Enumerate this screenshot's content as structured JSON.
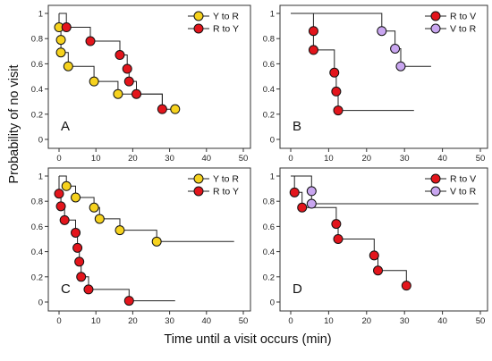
{
  "figure": {
    "ylabel": "Probability of no visit",
    "xlabel": "Time until a visit occurs (min)"
  },
  "colors": {
    "yellow": "#f6d21e",
    "red": "#e3151c",
    "purple": "#c9a6f0",
    "line": "#222222"
  },
  "chart_data": [
    {
      "type": "line",
      "panel": "A",
      "xlim": [
        0,
        50
      ],
      "ylim": [
        0,
        1
      ],
      "xticks": [
        "0",
        "10",
        "20",
        "30",
        "40",
        "50"
      ],
      "yticks": [
        "0",
        "0.2",
        "0.4",
        "0.6",
        "0.8",
        "1"
      ],
      "grid": false,
      "legend_position": "top-right",
      "series": [
        {
          "name": "Y to R",
          "color": "#f6d21e",
          "steps": [
            [
              0,
              1
            ],
            [
              0,
              0.9
            ],
            [
              0.5,
              0.79
            ],
            [
              0.5,
              0.69
            ],
            [
              2.5,
              0.58
            ],
            [
              9.5,
              0.46
            ],
            [
              16,
              0.36
            ],
            [
              28,
              0.24
            ],
            [
              31.5,
              0.24
            ]
          ],
          "points": [
            [
              0,
              0.89
            ],
            [
              0.5,
              0.79
            ],
            [
              0.5,
              0.69
            ],
            [
              2.5,
              0.58
            ],
            [
              9.5,
              0.46
            ],
            [
              16,
              0.36
            ],
            [
              31.5,
              0.24
            ]
          ]
        },
        {
          "name": "R to Y",
          "color": "#e3151c",
          "steps": [
            [
              0,
              1
            ],
            [
              2,
              0.89
            ],
            [
              8.5,
              0.78
            ],
            [
              16.5,
              0.67
            ],
            [
              18.5,
              0.56
            ],
            [
              19,
              0.46
            ],
            [
              21,
              0.36
            ],
            [
              28,
              0.24
            ],
            [
              28,
              0.24
            ]
          ],
          "points": [
            [
              2,
              0.89
            ],
            [
              8.5,
              0.78
            ],
            [
              16.5,
              0.67
            ],
            [
              18.5,
              0.56
            ],
            [
              19,
              0.46
            ],
            [
              21,
              0.36
            ],
            [
              28,
              0.24
            ]
          ]
        }
      ]
    },
    {
      "type": "line",
      "panel": "B",
      "xlim": [
        0,
        50
      ],
      "ylim": [
        0,
        1
      ],
      "xticks": [
        "0",
        "10",
        "20",
        "30",
        "40",
        "50"
      ],
      "yticks": [
        "0",
        "0.2",
        "0.4",
        "0.6",
        "0.8",
        "1"
      ],
      "grid": false,
      "legend_position": "top-right",
      "series": [
        {
          "name": "R to V",
          "color": "#e3151c",
          "steps": [
            [
              0,
              1
            ],
            [
              6,
              0.86
            ],
            [
              6,
              0.71
            ],
            [
              11.5,
              0.53
            ],
            [
              12,
              0.38
            ],
            [
              12.5,
              0.23
            ],
            [
              32.5,
              0.23
            ]
          ],
          "points": [
            [
              6,
              0.86
            ],
            [
              6,
              0.71
            ],
            [
              11.5,
              0.53
            ],
            [
              12,
              0.38
            ],
            [
              12.5,
              0.23
            ]
          ]
        },
        {
          "name": "V to R",
          "color": "#c9a6f0",
          "steps": [
            [
              0,
              1
            ],
            [
              24,
              0.86
            ],
            [
              27.5,
              0.72
            ],
            [
              29,
              0.58
            ],
            [
              37,
              0.58
            ]
          ],
          "points": [
            [
              24,
              0.86
            ],
            [
              27.5,
              0.72
            ],
            [
              29,
              0.58
            ]
          ]
        }
      ]
    },
    {
      "type": "line",
      "panel": "C",
      "xlim": [
        0,
        50
      ],
      "ylim": [
        0,
        1
      ],
      "xticks": [
        "0",
        "10",
        "20",
        "30",
        "40",
        "50"
      ],
      "yticks": [
        "0",
        "0.2",
        "0.4",
        "0.6",
        "0.8",
        "1"
      ],
      "grid": false,
      "legend_position": "top-right",
      "series": [
        {
          "name": "Y to R",
          "color": "#f6d21e",
          "steps": [
            [
              0,
              1
            ],
            [
              2,
              0.92
            ],
            [
              4.5,
              0.83
            ],
            [
              9.5,
              0.75
            ],
            [
              11,
              0.66
            ],
            [
              16.5,
              0.57
            ],
            [
              26.5,
              0.48
            ],
            [
              47.5,
              0.48
            ]
          ],
          "points": [
            [
              2,
              0.92
            ],
            [
              4.5,
              0.83
            ],
            [
              9.5,
              0.75
            ],
            [
              11,
              0.66
            ],
            [
              16.5,
              0.57
            ],
            [
              26.5,
              0.48
            ]
          ]
        },
        {
          "name": "R to Y",
          "color": "#e3151c",
          "steps": [
            [
              0,
              1
            ],
            [
              0,
              0.86
            ],
            [
              0.5,
              0.76
            ],
            [
              1.5,
              0.65
            ],
            [
              4.5,
              0.55
            ],
            [
              5,
              0.43
            ],
            [
              5.5,
              0.32
            ],
            [
              6,
              0.2
            ],
            [
              8,
              0.1
            ],
            [
              19,
              0.01
            ],
            [
              31.5,
              0.01
            ]
          ],
          "points": [
            [
              0,
              0.86
            ],
            [
              0.5,
              0.76
            ],
            [
              1.5,
              0.65
            ],
            [
              4.5,
              0.55
            ],
            [
              5,
              0.43
            ],
            [
              5.5,
              0.32
            ],
            [
              6,
              0.2
            ],
            [
              8,
              0.1
            ],
            [
              19,
              0.01
            ]
          ]
        }
      ]
    },
    {
      "type": "line",
      "panel": "D",
      "xlim": [
        0,
        50
      ],
      "ylim": [
        0,
        1
      ],
      "xticks": [
        "0",
        "10",
        "20",
        "30",
        "40",
        "50"
      ],
      "yticks": [
        "0",
        "0.2",
        "0.4",
        "0.6",
        "0.8",
        "1"
      ],
      "grid": false,
      "legend_position": "top-right",
      "series": [
        {
          "name": "R to V",
          "color": "#e3151c",
          "steps": [
            [
              0,
              1
            ],
            [
              1,
              0.87
            ],
            [
              3,
              0.75
            ],
            [
              12,
              0.62
            ],
            [
              12.5,
              0.5
            ],
            [
              22,
              0.37
            ],
            [
              23,
              0.25
            ],
            [
              30.5,
              0.13
            ]
          ],
          "points": [
            [
              1,
              0.87
            ],
            [
              3,
              0.75
            ],
            [
              12,
              0.62
            ],
            [
              12.5,
              0.5
            ],
            [
              22,
              0.37
            ],
            [
              23,
              0.25
            ],
            [
              30.5,
              0.13
            ]
          ]
        },
        {
          "name": "V to R",
          "color": "#c9a6f0",
          "steps": [
            [
              0,
              1
            ],
            [
              5.5,
              0.88
            ],
            [
              5.5,
              0.78
            ],
            [
              49.5,
              0.78
            ]
          ],
          "points": [
            [
              5.5,
              0.88
            ],
            [
              5.5,
              0.78
            ]
          ]
        }
      ]
    }
  ]
}
